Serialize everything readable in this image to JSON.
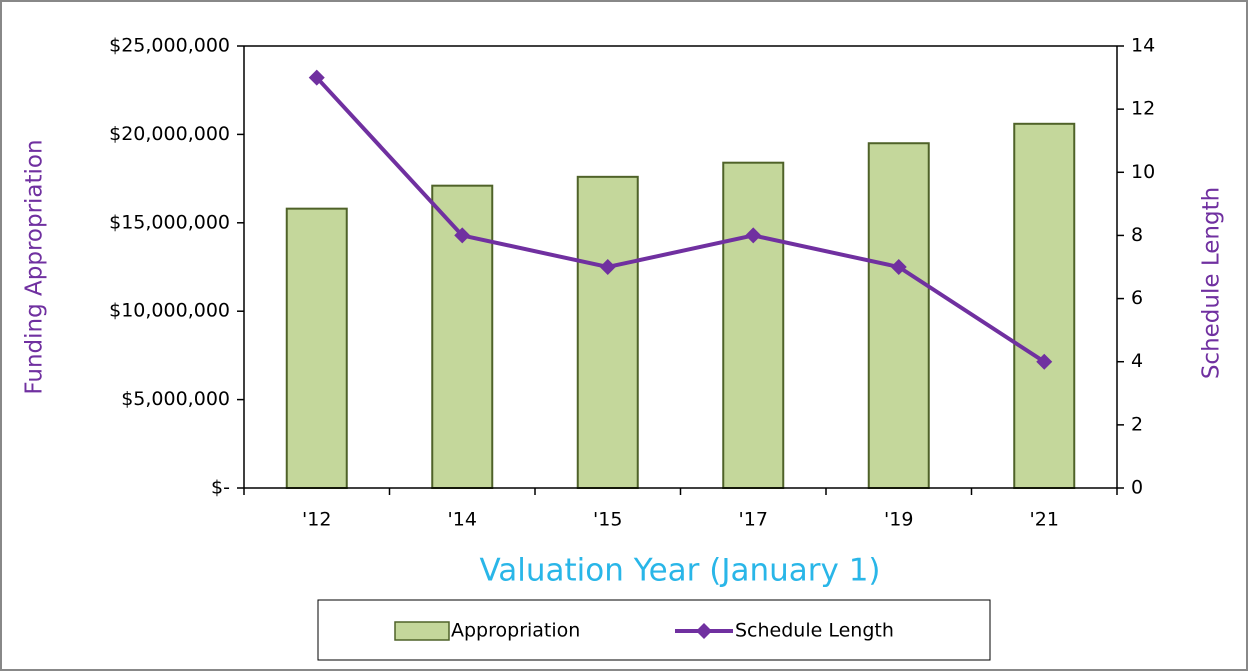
{
  "chart_data": {
    "type": "bar",
    "x_label": "Valuation Year (January 1)",
    "y_label": "Funding Appropriation",
    "y2_label": "Schedule Length",
    "categories": [
      "'12",
      "'14",
      "'15",
      "'17",
      "'19",
      "'21"
    ],
    "series": [
      {
        "name": "Appropriation",
        "type": "bar",
        "color": "#c4d79b",
        "edge_color": "#4f6228",
        "values": [
          15800000,
          17100000,
          17600000,
          18400000,
          19500000,
          20600000
        ]
      },
      {
        "name": "Schedule Length",
        "type": "line",
        "axis": "y2",
        "color": "#7030a0",
        "values": [
          13,
          8,
          7,
          8,
          7,
          4
        ]
      }
    ],
    "ylim": [
      0,
      25000000
    ],
    "yticks": [
      {
        "value": 0,
        "label": "$-"
      },
      {
        "value": 5000000,
        "label": "$5,000,000"
      },
      {
        "value": 10000000,
        "label": "$10,000,000"
      },
      {
        "value": 15000000,
        "label": "$15,000,000"
      },
      {
        "value": 20000000,
        "label": "$20,000,000"
      },
      {
        "value": 25000000,
        "label": "$25,000,000"
      }
    ],
    "y2lim": [
      0,
      14
    ],
    "y2ticks": [
      0,
      2,
      4,
      6,
      8,
      10,
      12,
      14
    ],
    "legend": "bottom",
    "grid": false
  }
}
